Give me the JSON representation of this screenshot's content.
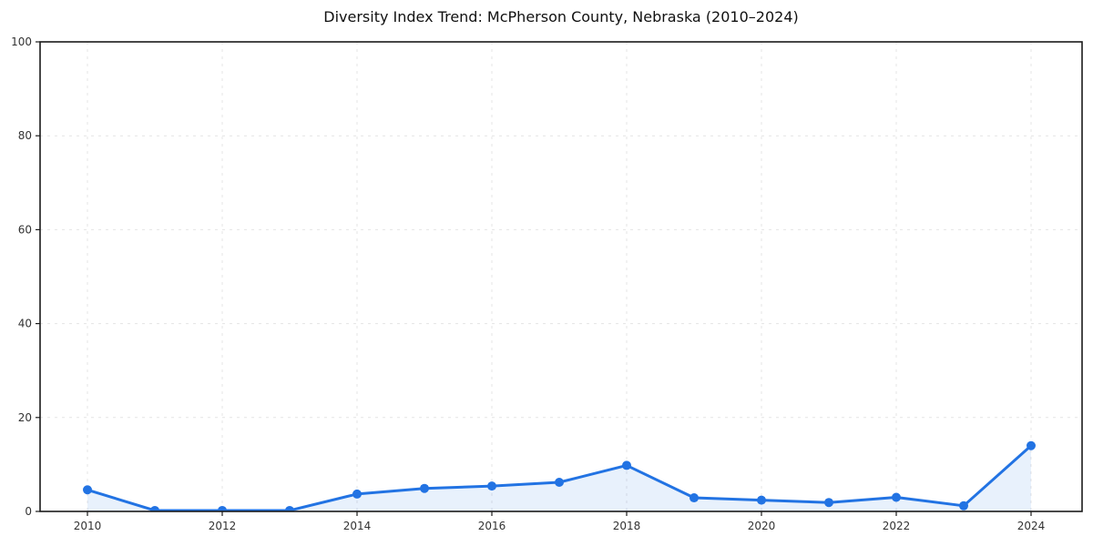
{
  "page": {
    "background_color": "#ffffff"
  },
  "chart_data": {
    "type": "line",
    "title": "Diversity Index Trend: McPherson County, Nebraska (2010–2024)",
    "x": [
      2010,
      2011,
      2012,
      2013,
      2014,
      2015,
      2016,
      2017,
      2018,
      2019,
      2020,
      2021,
      2022,
      2023,
      2024
    ],
    "series": [
      {
        "name": "Diversity Index",
        "values": [
          4.6,
          0.2,
          0.2,
          0.2,
          3.7,
          4.9,
          5.4,
          6.2,
          9.8,
          2.9,
          2.4,
          1.9,
          3.0,
          1.2,
          14.0
        ]
      }
    ],
    "xlabel": "",
    "ylabel": "",
    "ylim": [
      0,
      100
    ],
    "yticks": [
      0,
      20,
      40,
      60,
      80,
      100
    ],
    "xticks": [
      2010,
      2012,
      2014,
      2016,
      2018,
      2020,
      2022,
      2024
    ],
    "grid": true,
    "grid_style": "dashed",
    "legend": "none",
    "area_fill": true,
    "marker": "circle"
  },
  "style": {
    "line_color": "#2273e3",
    "marker_color": "#2273e3",
    "area_fill_color": "rgba(34, 115, 227, 0.10)",
    "grid_color": "#e4e4e4",
    "axis_color": "#1a1a1a",
    "tick_label_color": "#333333",
    "title_color": "#111111",
    "background_color": "#ffffff"
  }
}
